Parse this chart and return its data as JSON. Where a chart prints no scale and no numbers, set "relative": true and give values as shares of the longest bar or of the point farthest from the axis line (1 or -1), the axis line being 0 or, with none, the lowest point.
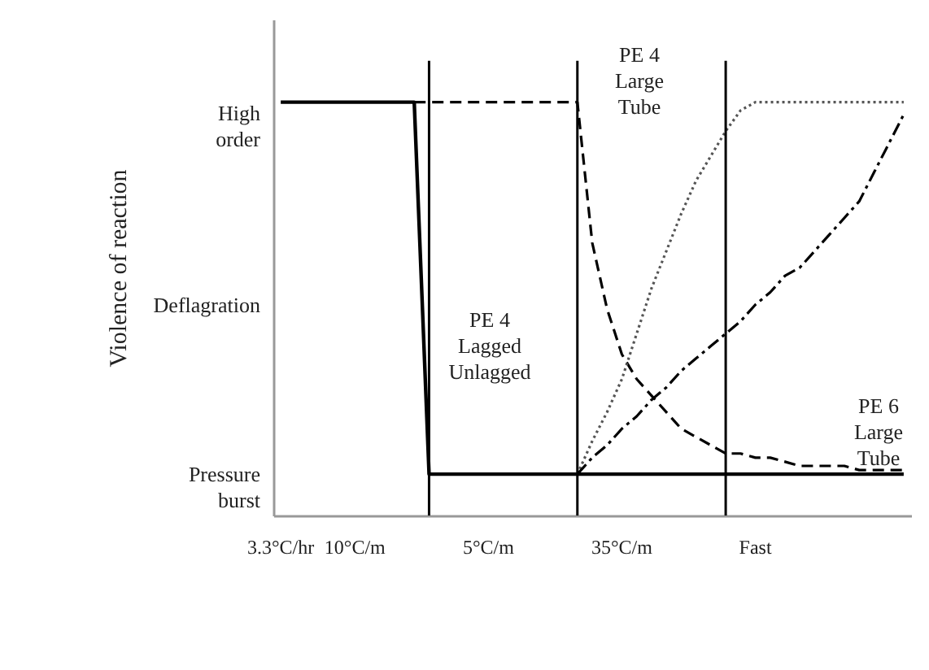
{
  "chart_data": {
    "type": "line",
    "relative": true,
    "ylabel": "Violence of reaction",
    "categories": [
      "3.3°C/hr",
      null,
      null,
      null,
      null,
      "10°C/m",
      null,
      null,
      null,
      null,
      null,
      null,
      null,
      null,
      "5°C/m",
      null,
      null,
      null,
      null,
      null,
      null,
      null,
      null,
      "35°C/m",
      null,
      null,
      null,
      null,
      null,
      null,
      null,
      null,
      "Fast",
      null,
      null,
      null,
      null,
      null,
      null,
      null,
      null,
      null,
      null
    ],
    "series": [
      {
        "color": "#000000",
        "line_style": "solid",
        "values": [
          1,
          1,
          1,
          1,
          1,
          1,
          1,
          1,
          1,
          1,
          0.1,
          0.1,
          0.1,
          0.1,
          0.1,
          0.1,
          0.1,
          0.1,
          0.1,
          0.1,
          0.1,
          0.1,
          0.1,
          0.1,
          0.1,
          0.1,
          0.1,
          0.1,
          0.1,
          0.1,
          0.1,
          0.1,
          0.1,
          0.1,
          0.1,
          0.1,
          0.1,
          0.1,
          0.1,
          0.1,
          0.1,
          0.1,
          0.1
        ]
      },
      {
        "color": "#000000",
        "line_style": "dashed",
        "values": [
          null,
          null,
          null,
          null,
          null,
          null,
          null,
          null,
          null,
          1,
          1,
          1,
          1,
          1,
          1,
          1,
          1,
          1,
          1,
          1,
          1,
          0.66,
          0.5,
          0.39,
          0.33,
          0.29,
          0.25,
          0.21,
          0.19,
          0.17,
          0.15,
          0.15,
          0.14,
          0.14,
          0.13,
          0.12,
          0.12,
          0.12,
          0.12,
          0.11,
          0.11,
          0.11,
          0.11
        ]
      },
      {
        "color": "#555555",
        "line_style": "dotted",
        "values": [
          null,
          null,
          null,
          null,
          null,
          null,
          null,
          null,
          null,
          null,
          null,
          null,
          null,
          null,
          null,
          null,
          null,
          null,
          null,
          null,
          0.1,
          0.18,
          0.25,
          0.33,
          0.44,
          0.55,
          0.64,
          0.73,
          0.81,
          0.87,
          0.93,
          0.98,
          1,
          1,
          1,
          1,
          1,
          1,
          1,
          1,
          1,
          1,
          1
        ]
      },
      {
        "color": "#000000",
        "line_style": "dashdot",
        "values": [
          null,
          null,
          null,
          null,
          null,
          null,
          null,
          null,
          null,
          null,
          null,
          null,
          null,
          null,
          null,
          null,
          null,
          null,
          null,
          null,
          0.1,
          0.14,
          0.17,
          0.21,
          0.24,
          0.28,
          0.31,
          0.35,
          0.38,
          0.41,
          0.44,
          0.47,
          0.51,
          0.54,
          0.58,
          0.6,
          0.64,
          0.68,
          0.72,
          0.76,
          0.83,
          0.9,
          0.97
        ]
      }
    ],
    "grid": "x",
    "annotations": [
      "High\norder",
      "Deflagration",
      "Pressure\nburst",
      "PE 4\nLarge\nTube",
      "PE 4\nLagged\nUnlagged",
      "PE 6\nLarge\nTube"
    ]
  }
}
